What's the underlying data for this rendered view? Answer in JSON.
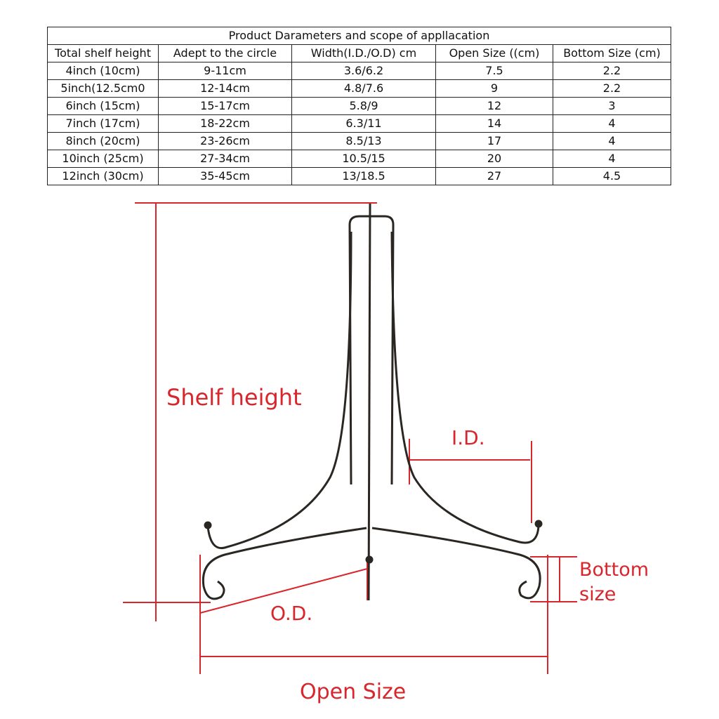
{
  "table": {
    "title": "Product  Darameters and scope of appllacation",
    "header": [
      "Total shelf height",
      "Adept to the circle",
      "Width(I.D./O.D) cm",
      "Open Size ((cm)",
      "Bottom Size (cm)"
    ],
    "rows": [
      [
        "4inch (10cm)",
        "9-11cm",
        "3.6/6.2",
        "7.5",
        "2.2"
      ],
      [
        "5inch(12.5cm0",
        "12-14cm",
        "4.8/7.6",
        "9",
        "2.2"
      ],
      [
        "6inch (15cm)",
        "15-17cm",
        "5.8/9",
        "12",
        "3"
      ],
      [
        "7inch (17cm)",
        "18-22cm",
        "6.3/11",
        "14",
        "4"
      ],
      [
        "8inch (20cm)",
        "23-26cm",
        "8.5/13",
        "17",
        "4"
      ],
      [
        "10inch (25cm)",
        "27-34cm",
        "10.5/15",
        "20",
        "4"
      ],
      [
        "12inch (30cm)",
        "35-45cm",
        "13/18.5",
        "27",
        "4.5"
      ]
    ]
  },
  "diagram": {
    "shelf_height": "Shelf height",
    "id": "I.D.",
    "od": "O.D.",
    "open_size": "Open Size",
    "bottom_size": [
      "Bottom",
      "size"
    ]
  }
}
